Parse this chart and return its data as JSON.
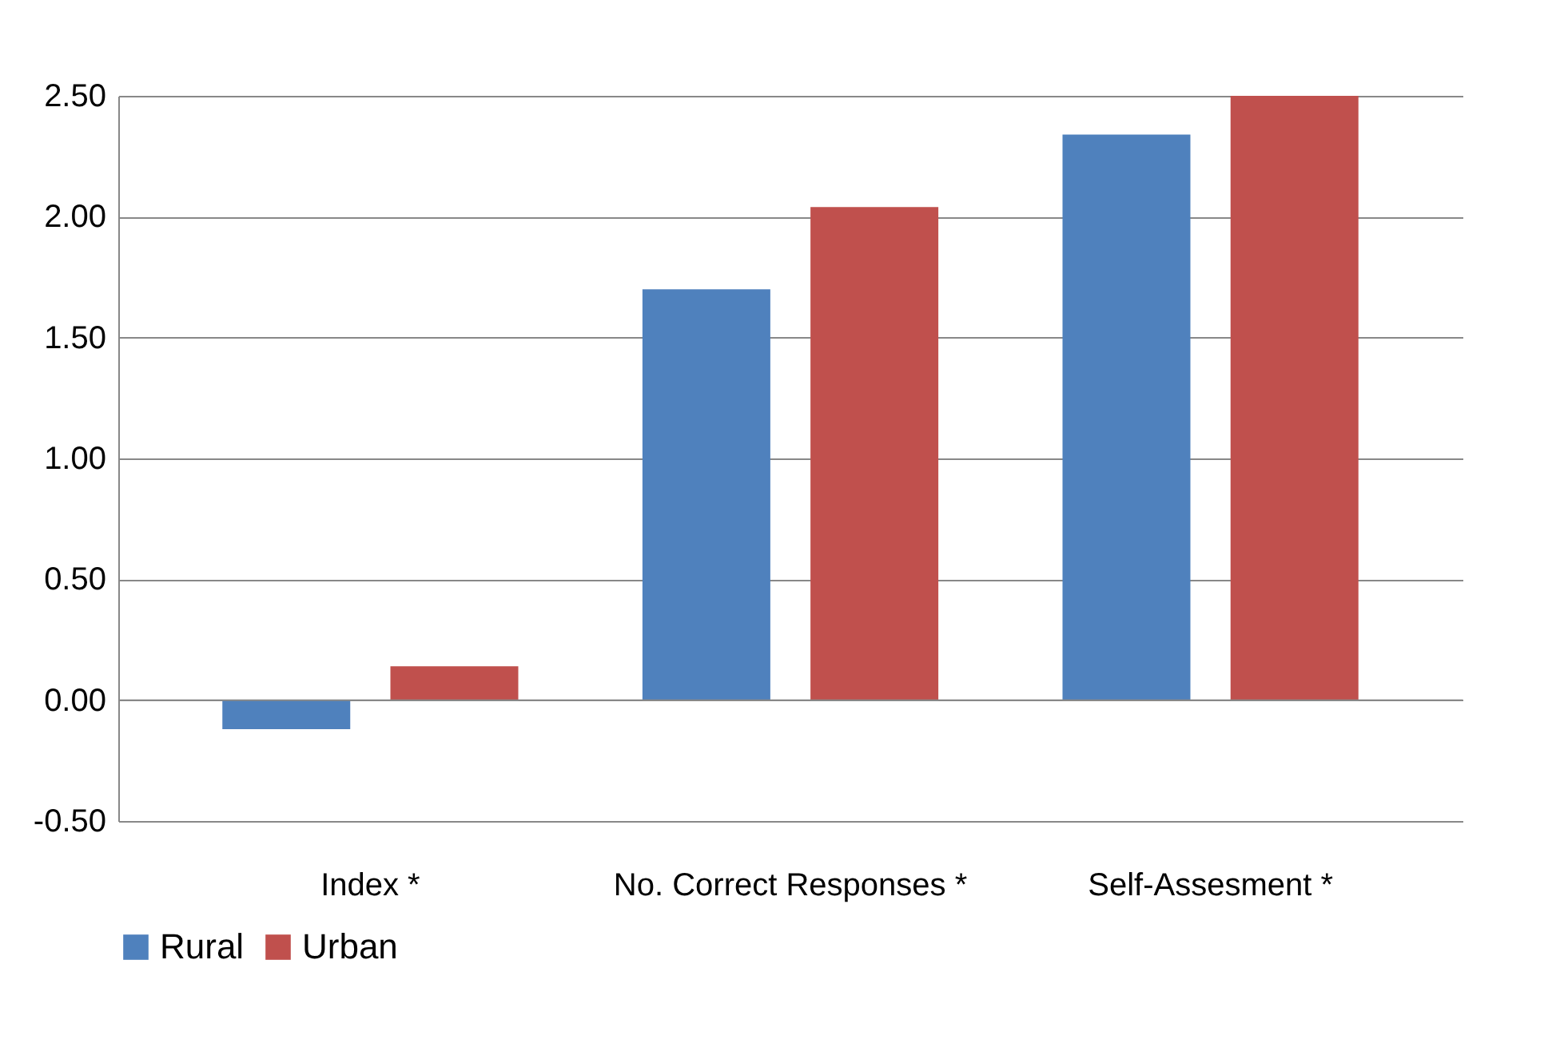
{
  "chart_data": {
    "type": "bar",
    "categories": [
      "Index *",
      "No. Correct Responses *",
      "Self-Assesment *"
    ],
    "series": [
      {
        "name": "Rural",
        "color": "#4f81bd",
        "values": [
          -0.12,
          1.7,
          2.34
        ]
      },
      {
        "name": "Urban",
        "color": "#c0504d",
        "values": [
          0.14,
          2.04,
          2.5
        ]
      }
    ],
    "ylim": [
      -0.5,
      2.5
    ],
    "yticks": [
      {
        "value": -0.5,
        "label": "-0.50"
      },
      {
        "value": 0,
        "label": "0.00"
      },
      {
        "value": 0.5,
        "label": "0.50"
      },
      {
        "value": 1,
        "label": "1.00"
      },
      {
        "value": 1.5,
        "label": "1.50"
      },
      {
        "value": 2,
        "label": "2.00"
      },
      {
        "value": 2.5,
        "label": "2.50"
      }
    ],
    "grid": "y",
    "legend": "bottom"
  }
}
